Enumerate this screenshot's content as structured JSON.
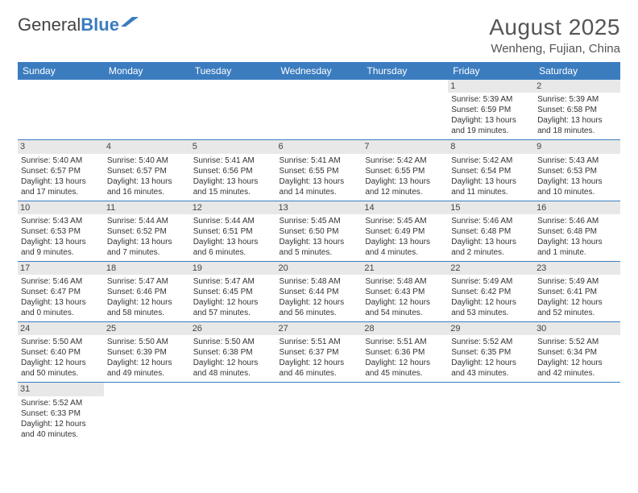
{
  "logo": {
    "text1": "General",
    "text2": "Blue"
  },
  "title": "August 2025",
  "location": "Wenheng, Fujian, China",
  "colors": {
    "header_bg": "#3b7cbf",
    "daynum_bg": "#e8e8e8",
    "row_border": "#3b7cbf"
  },
  "fonts": {
    "title_size": 28,
    "location_size": 15,
    "header_size": 12,
    "cell_size": 10,
    "daynum_size": 11
  },
  "day_headers": [
    "Sunday",
    "Monday",
    "Tuesday",
    "Wednesday",
    "Thursday",
    "Friday",
    "Saturday"
  ],
  "weeks": [
    [
      null,
      null,
      null,
      null,
      null,
      {
        "n": "1",
        "sr": "Sunrise: 5:39 AM",
        "ss": "Sunset: 6:59 PM",
        "d1": "Daylight: 13 hours",
        "d2": "and 19 minutes."
      },
      {
        "n": "2",
        "sr": "Sunrise: 5:39 AM",
        "ss": "Sunset: 6:58 PM",
        "d1": "Daylight: 13 hours",
        "d2": "and 18 minutes."
      }
    ],
    [
      {
        "n": "3",
        "sr": "Sunrise: 5:40 AM",
        "ss": "Sunset: 6:57 PM",
        "d1": "Daylight: 13 hours",
        "d2": "and 17 minutes."
      },
      {
        "n": "4",
        "sr": "Sunrise: 5:40 AM",
        "ss": "Sunset: 6:57 PM",
        "d1": "Daylight: 13 hours",
        "d2": "and 16 minutes."
      },
      {
        "n": "5",
        "sr": "Sunrise: 5:41 AM",
        "ss": "Sunset: 6:56 PM",
        "d1": "Daylight: 13 hours",
        "d2": "and 15 minutes."
      },
      {
        "n": "6",
        "sr": "Sunrise: 5:41 AM",
        "ss": "Sunset: 6:55 PM",
        "d1": "Daylight: 13 hours",
        "d2": "and 14 minutes."
      },
      {
        "n": "7",
        "sr": "Sunrise: 5:42 AM",
        "ss": "Sunset: 6:55 PM",
        "d1": "Daylight: 13 hours",
        "d2": "and 12 minutes."
      },
      {
        "n": "8",
        "sr": "Sunrise: 5:42 AM",
        "ss": "Sunset: 6:54 PM",
        "d1": "Daylight: 13 hours",
        "d2": "and 11 minutes."
      },
      {
        "n": "9",
        "sr": "Sunrise: 5:43 AM",
        "ss": "Sunset: 6:53 PM",
        "d1": "Daylight: 13 hours",
        "d2": "and 10 minutes."
      }
    ],
    [
      {
        "n": "10",
        "sr": "Sunrise: 5:43 AM",
        "ss": "Sunset: 6:53 PM",
        "d1": "Daylight: 13 hours",
        "d2": "and 9 minutes."
      },
      {
        "n": "11",
        "sr": "Sunrise: 5:44 AM",
        "ss": "Sunset: 6:52 PM",
        "d1": "Daylight: 13 hours",
        "d2": "and 7 minutes."
      },
      {
        "n": "12",
        "sr": "Sunrise: 5:44 AM",
        "ss": "Sunset: 6:51 PM",
        "d1": "Daylight: 13 hours",
        "d2": "and 6 minutes."
      },
      {
        "n": "13",
        "sr": "Sunrise: 5:45 AM",
        "ss": "Sunset: 6:50 PM",
        "d1": "Daylight: 13 hours",
        "d2": "and 5 minutes."
      },
      {
        "n": "14",
        "sr": "Sunrise: 5:45 AM",
        "ss": "Sunset: 6:49 PM",
        "d1": "Daylight: 13 hours",
        "d2": "and 4 minutes."
      },
      {
        "n": "15",
        "sr": "Sunrise: 5:46 AM",
        "ss": "Sunset: 6:48 PM",
        "d1": "Daylight: 13 hours",
        "d2": "and 2 minutes."
      },
      {
        "n": "16",
        "sr": "Sunrise: 5:46 AM",
        "ss": "Sunset: 6:48 PM",
        "d1": "Daylight: 13 hours",
        "d2": "and 1 minute."
      }
    ],
    [
      {
        "n": "17",
        "sr": "Sunrise: 5:46 AM",
        "ss": "Sunset: 6:47 PM",
        "d1": "Daylight: 13 hours",
        "d2": "and 0 minutes."
      },
      {
        "n": "18",
        "sr": "Sunrise: 5:47 AM",
        "ss": "Sunset: 6:46 PM",
        "d1": "Daylight: 12 hours",
        "d2": "and 58 minutes."
      },
      {
        "n": "19",
        "sr": "Sunrise: 5:47 AM",
        "ss": "Sunset: 6:45 PM",
        "d1": "Daylight: 12 hours",
        "d2": "and 57 minutes."
      },
      {
        "n": "20",
        "sr": "Sunrise: 5:48 AM",
        "ss": "Sunset: 6:44 PM",
        "d1": "Daylight: 12 hours",
        "d2": "and 56 minutes."
      },
      {
        "n": "21",
        "sr": "Sunrise: 5:48 AM",
        "ss": "Sunset: 6:43 PM",
        "d1": "Daylight: 12 hours",
        "d2": "and 54 minutes."
      },
      {
        "n": "22",
        "sr": "Sunrise: 5:49 AM",
        "ss": "Sunset: 6:42 PM",
        "d1": "Daylight: 12 hours",
        "d2": "and 53 minutes."
      },
      {
        "n": "23",
        "sr": "Sunrise: 5:49 AM",
        "ss": "Sunset: 6:41 PM",
        "d1": "Daylight: 12 hours",
        "d2": "and 52 minutes."
      }
    ],
    [
      {
        "n": "24",
        "sr": "Sunrise: 5:50 AM",
        "ss": "Sunset: 6:40 PM",
        "d1": "Daylight: 12 hours",
        "d2": "and 50 minutes."
      },
      {
        "n": "25",
        "sr": "Sunrise: 5:50 AM",
        "ss": "Sunset: 6:39 PM",
        "d1": "Daylight: 12 hours",
        "d2": "and 49 minutes."
      },
      {
        "n": "26",
        "sr": "Sunrise: 5:50 AM",
        "ss": "Sunset: 6:38 PM",
        "d1": "Daylight: 12 hours",
        "d2": "and 48 minutes."
      },
      {
        "n": "27",
        "sr": "Sunrise: 5:51 AM",
        "ss": "Sunset: 6:37 PM",
        "d1": "Daylight: 12 hours",
        "d2": "and 46 minutes."
      },
      {
        "n": "28",
        "sr": "Sunrise: 5:51 AM",
        "ss": "Sunset: 6:36 PM",
        "d1": "Daylight: 12 hours",
        "d2": "and 45 minutes."
      },
      {
        "n": "29",
        "sr": "Sunrise: 5:52 AM",
        "ss": "Sunset: 6:35 PM",
        "d1": "Daylight: 12 hours",
        "d2": "and 43 minutes."
      },
      {
        "n": "30",
        "sr": "Sunrise: 5:52 AM",
        "ss": "Sunset: 6:34 PM",
        "d1": "Daylight: 12 hours",
        "d2": "and 42 minutes."
      }
    ],
    [
      {
        "n": "31",
        "sr": "Sunrise: 5:52 AM",
        "ss": "Sunset: 6:33 PM",
        "d1": "Daylight: 12 hours",
        "d2": "and 40 minutes."
      },
      null,
      null,
      null,
      null,
      null,
      null
    ]
  ]
}
